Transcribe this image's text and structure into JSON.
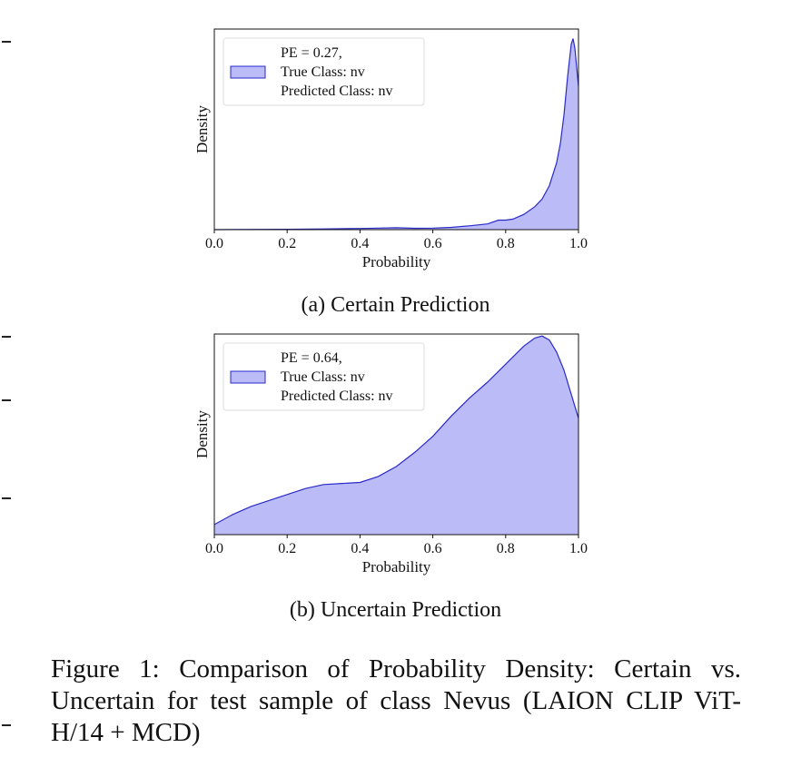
{
  "chart_data": [
    {
      "type": "area",
      "subcaption": "(a) Certain Prediction",
      "xlabel": "Probability",
      "ylabel": "Density",
      "xlim": [
        0.0,
        1.0
      ],
      "xticks": [
        "0.0",
        "0.2",
        "0.4",
        "0.6",
        "0.8",
        "1.0"
      ],
      "grid": false,
      "legend_position": "top-left",
      "legend": [
        "PE = 0.27,",
        "True Class: nv",
        "Predicted Class: nv"
      ],
      "fill_color": "#bbbbf7",
      "line_color": "#2a2ac8",
      "ylim": [
        0,
        1.05
      ],
      "x": [
        0.0,
        0.2,
        0.3,
        0.4,
        0.45,
        0.5,
        0.55,
        0.6,
        0.65,
        0.7,
        0.75,
        0.78,
        0.8,
        0.82,
        0.85,
        0.88,
        0.9,
        0.92,
        0.94,
        0.95,
        0.96,
        0.97,
        0.98,
        0.985,
        0.99,
        1.0
      ],
      "y": [
        0.0,
        0.002,
        0.004,
        0.006,
        0.008,
        0.01,
        0.007,
        0.008,
        0.012,
        0.02,
        0.03,
        0.05,
        0.05,
        0.055,
        0.08,
        0.12,
        0.16,
        0.23,
        0.35,
        0.45,
        0.6,
        0.8,
        0.97,
        1.0,
        0.95,
        0.75
      ]
    },
    {
      "type": "area",
      "subcaption": "(b) Uncertain Prediction",
      "xlabel": "Probability",
      "ylabel": "Density",
      "xlim": [
        0.0,
        1.0
      ],
      "xticks": [
        "0.0",
        "0.2",
        "0.4",
        "0.6",
        "0.8",
        "1.0"
      ],
      "grid": false,
      "legend_position": "top-left",
      "legend": [
        "PE = 0.64,",
        "True Class: nv",
        "Predicted Class: nv"
      ],
      "fill_color": "#bbbbf7",
      "line_color": "#2a2ac8",
      "ylim": [
        0,
        1.0
      ],
      "x": [
        0.0,
        0.05,
        0.1,
        0.15,
        0.2,
        0.25,
        0.3,
        0.35,
        0.4,
        0.45,
        0.5,
        0.55,
        0.6,
        0.65,
        0.7,
        0.75,
        0.8,
        0.85,
        0.88,
        0.9,
        0.92,
        0.94,
        0.96,
        0.98,
        1.0
      ],
      "y": [
        0.05,
        0.1,
        0.14,
        0.17,
        0.2,
        0.23,
        0.25,
        0.255,
        0.26,
        0.29,
        0.34,
        0.41,
        0.49,
        0.59,
        0.68,
        0.76,
        0.85,
        0.94,
        0.98,
        0.99,
        0.97,
        0.91,
        0.82,
        0.7,
        0.58
      ]
    }
  ],
  "caption": "Figure 1: Comparison of Probability Density: Certain vs. Uncertain for test sample of class Nevus (LAION CLIP ViT-H/14 + MCD)"
}
